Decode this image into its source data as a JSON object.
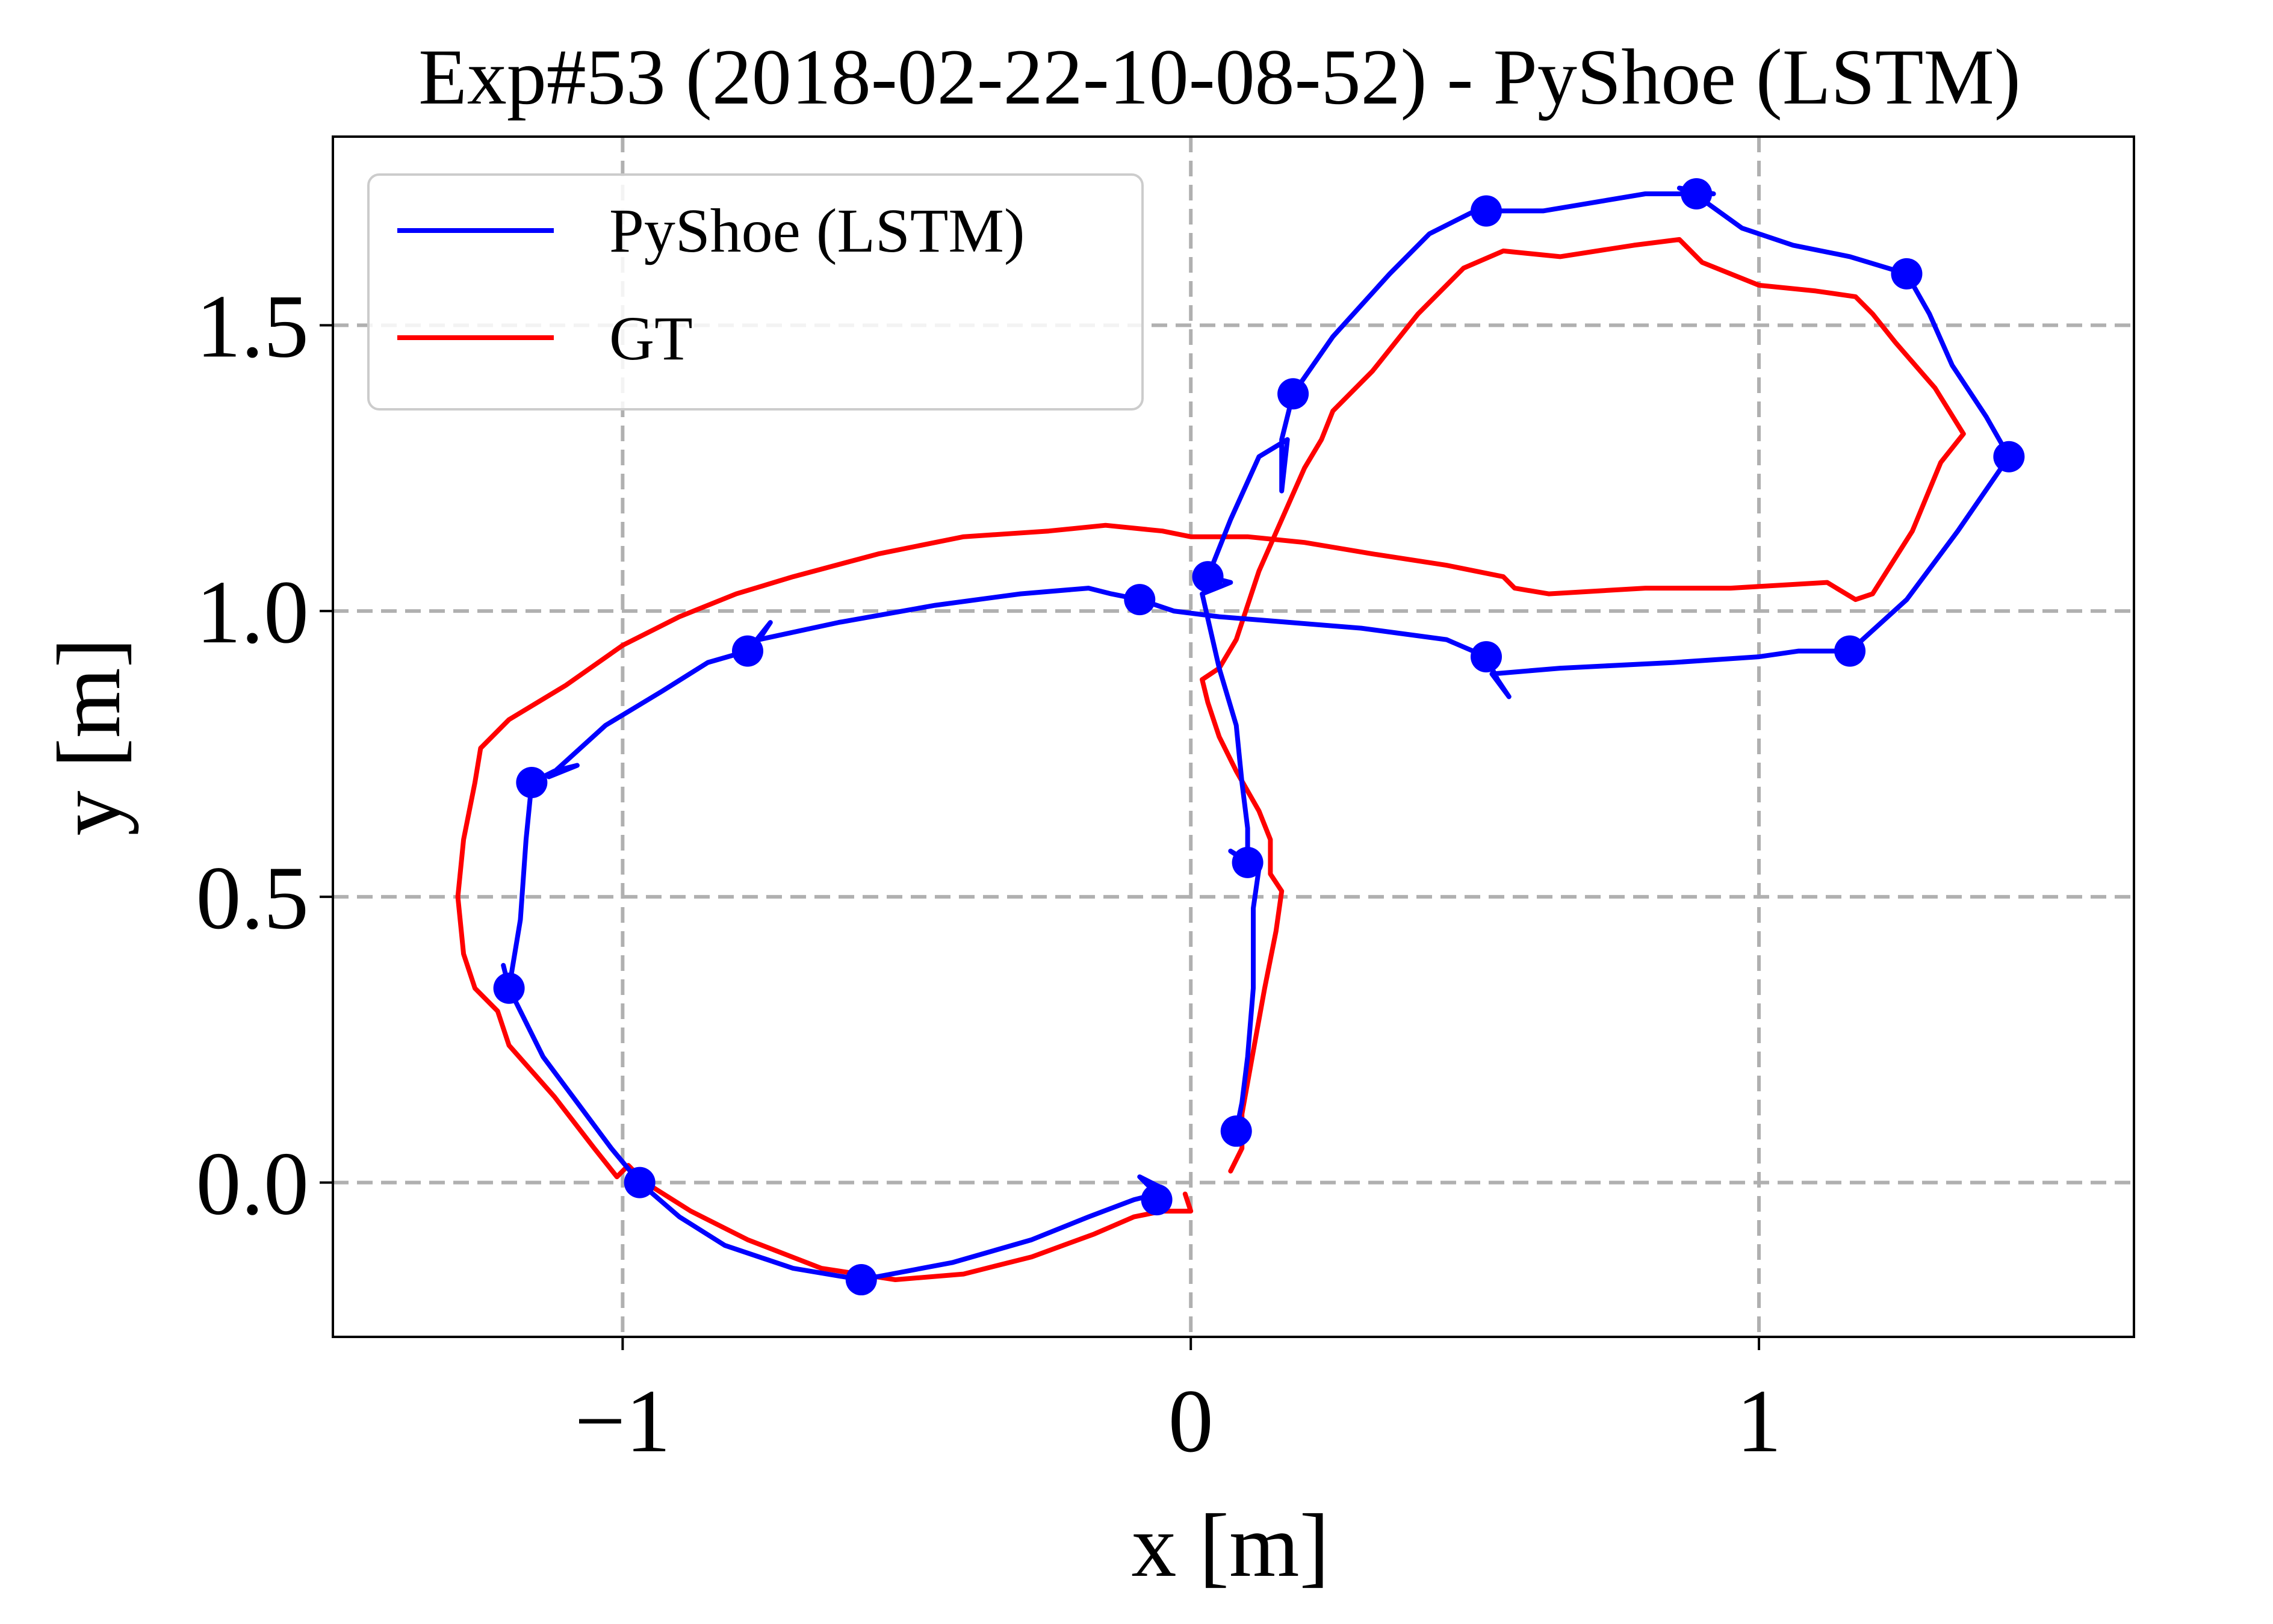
{
  "chart_data": {
    "type": "line",
    "title": "Exp#53 (2018-02-22-10-08-52) - PyShoe (LSTM)",
    "xlabel": "x [m]",
    "ylabel": "y [m]",
    "xlim": [
      -1.51,
      1.66
    ],
    "ylim": [
      -0.27,
      1.83
    ],
    "x_ticks": [
      -1,
      0,
      1
    ],
    "x_tick_labels": [
      "−1",
      "0",
      "1"
    ],
    "y_ticks": [
      0.0,
      0.5,
      1.0,
      1.5
    ],
    "y_tick_labels": [
      "0.0",
      "0.5",
      "1.0",
      "1.5"
    ],
    "grid": true,
    "grid_style": "dashed",
    "legend_position": "upper-left",
    "series": [
      {
        "name": "PyShoe (LSTM)",
        "color": "#0000ff",
        "points": [
          [
            -0.05,
            -0.01
          ],
          [
            -0.09,
            0.01
          ],
          [
            -0.06,
            -0.02
          ],
          [
            -0.1,
            -0.03
          ],
          [
            -0.18,
            -0.06
          ],
          [
            -0.28,
            -0.1
          ],
          [
            -0.42,
            -0.14
          ],
          [
            -0.58,
            -0.17
          ],
          [
            -0.7,
            -0.15
          ],
          [
            -0.82,
            -0.11
          ],
          [
            -0.9,
            -0.06
          ],
          [
            -0.97,
            0.0
          ],
          [
            -1.02,
            0.06
          ],
          [
            -1.08,
            0.14
          ],
          [
            -1.14,
            0.22
          ],
          [
            -1.18,
            0.3
          ],
          [
            -1.2,
            0.34
          ],
          [
            -1.21,
            0.38
          ],
          [
            -1.2,
            0.34
          ],
          [
            -1.18,
            0.46
          ],
          [
            -1.17,
            0.6
          ],
          [
            -1.16,
            0.7
          ],
          [
            -1.12,
            0.72
          ],
          [
            -1.08,
            0.73
          ],
          [
            -1.13,
            0.71
          ],
          [
            -1.03,
            0.8
          ],
          [
            -0.93,
            0.86
          ],
          [
            -0.85,
            0.91
          ],
          [
            -0.78,
            0.93
          ],
          [
            -0.74,
            0.98
          ],
          [
            -0.76,
            0.95
          ],
          [
            -0.62,
            0.98
          ],
          [
            -0.45,
            1.01
          ],
          [
            -0.3,
            1.03
          ],
          [
            -0.18,
            1.04
          ],
          [
            -0.14,
            1.03
          ],
          [
            -0.09,
            1.02
          ],
          [
            -0.03,
            1.0
          ],
          [
            0.05,
            0.99
          ],
          [
            0.3,
            0.97
          ],
          [
            0.45,
            0.95
          ],
          [
            0.52,
            0.92
          ],
          [
            0.54,
            0.88
          ],
          [
            0.56,
            0.85
          ],
          [
            0.53,
            0.89
          ],
          [
            0.65,
            0.9
          ],
          [
            0.85,
            0.91
          ],
          [
            1.0,
            0.92
          ],
          [
            1.07,
            0.93
          ],
          [
            1.12,
            0.93
          ],
          [
            1.16,
            0.93
          ],
          [
            1.26,
            1.02
          ],
          [
            1.35,
            1.14
          ],
          [
            1.44,
            1.27
          ],
          [
            1.4,
            1.34
          ],
          [
            1.34,
            1.43
          ],
          [
            1.3,
            1.52
          ],
          [
            1.26,
            1.59
          ],
          [
            1.16,
            1.62
          ],
          [
            1.06,
            1.64
          ],
          [
            0.97,
            1.67
          ],
          [
            0.9,
            1.72
          ],
          [
            0.86,
            1.74
          ],
          [
            0.92,
            1.73
          ],
          [
            0.8,
            1.73
          ],
          [
            0.62,
            1.7
          ],
          [
            0.52,
            1.7
          ],
          [
            0.5,
            1.7
          ],
          [
            0.42,
            1.66
          ],
          [
            0.35,
            1.59
          ],
          [
            0.25,
            1.48
          ],
          [
            0.18,
            1.38
          ],
          [
            0.16,
            1.3
          ],
          [
            0.16,
            1.21
          ],
          [
            0.17,
            1.3
          ],
          [
            0.12,
            1.27
          ],
          [
            0.07,
            1.16
          ],
          [
            0.03,
            1.06
          ],
          [
            0.07,
            1.05
          ],
          [
            0.02,
            1.03
          ],
          [
            0.05,
            0.9
          ],
          [
            0.08,
            0.8
          ],
          [
            0.09,
            0.7
          ],
          [
            0.1,
            0.62
          ],
          [
            0.1,
            0.56
          ],
          [
            0.07,
            0.58
          ],
          [
            0.12,
            0.55
          ],
          [
            0.11,
            0.48
          ],
          [
            0.11,
            0.34
          ],
          [
            0.1,
            0.22
          ],
          [
            0.09,
            0.14
          ],
          [
            0.08,
            0.09
          ]
        ]
      },
      {
        "name": "GT",
        "color": "#ff0000",
        "points": [
          [
            0.07,
            0.02
          ],
          [
            0.09,
            0.06
          ],
          [
            0.09,
            0.12
          ],
          [
            0.11,
            0.23
          ],
          [
            0.13,
            0.34
          ],
          [
            0.15,
            0.44
          ],
          [
            0.16,
            0.51
          ],
          [
            0.14,
            0.54
          ],
          [
            0.14,
            0.6
          ],
          [
            0.12,
            0.65
          ],
          [
            0.08,
            0.72
          ],
          [
            0.05,
            0.78
          ],
          [
            0.03,
            0.84
          ],
          [
            0.02,
            0.88
          ],
          [
            0.05,
            0.9
          ],
          [
            0.08,
            0.95
          ],
          [
            0.12,
            1.07
          ],
          [
            0.16,
            1.16
          ],
          [
            0.2,
            1.25
          ],
          [
            0.23,
            1.3
          ],
          [
            0.25,
            1.35
          ],
          [
            0.32,
            1.42
          ],
          [
            0.4,
            1.52
          ],
          [
            0.48,
            1.6
          ],
          [
            0.55,
            1.63
          ],
          [
            0.65,
            1.62
          ],
          [
            0.78,
            1.64
          ],
          [
            0.86,
            1.65
          ],
          [
            0.9,
            1.61
          ],
          [
            1.0,
            1.57
          ],
          [
            1.1,
            1.56
          ],
          [
            1.17,
            1.55
          ],
          [
            1.2,
            1.52
          ],
          [
            1.24,
            1.47
          ],
          [
            1.31,
            1.39
          ],
          [
            1.36,
            1.31
          ],
          [
            1.32,
            1.26
          ],
          [
            1.27,
            1.14
          ],
          [
            1.2,
            1.03
          ],
          [
            1.17,
            1.02
          ],
          [
            1.12,
            1.05
          ],
          [
            0.95,
            1.04
          ],
          [
            0.8,
            1.04
          ],
          [
            0.63,
            1.03
          ],
          [
            0.57,
            1.04
          ],
          [
            0.55,
            1.06
          ],
          [
            0.45,
            1.08
          ],
          [
            0.32,
            1.1
          ],
          [
            0.2,
            1.12
          ],
          [
            0.1,
            1.13
          ],
          [
            0.0,
            1.13
          ],
          [
            -0.05,
            1.14
          ],
          [
            -0.15,
            1.15
          ],
          [
            -0.25,
            1.14
          ],
          [
            -0.4,
            1.13
          ],
          [
            -0.55,
            1.1
          ],
          [
            -0.7,
            1.06
          ],
          [
            -0.8,
            1.03
          ],
          [
            -0.9,
            0.99
          ],
          [
            -1.0,
            0.94
          ],
          [
            -1.1,
            0.87
          ],
          [
            -1.2,
            0.81
          ],
          [
            -1.25,
            0.76
          ],
          [
            -1.26,
            0.7
          ],
          [
            -1.28,
            0.6
          ],
          [
            -1.29,
            0.5
          ],
          [
            -1.28,
            0.4
          ],
          [
            -1.26,
            0.34
          ],
          [
            -1.22,
            0.3
          ],
          [
            -1.2,
            0.24
          ],
          [
            -1.12,
            0.15
          ],
          [
            -1.05,
            0.06
          ],
          [
            -1.01,
            0.01
          ],
          [
            -0.99,
            0.03
          ],
          [
            -0.96,
            0.0
          ],
          [
            -0.88,
            -0.05
          ],
          [
            -0.78,
            -0.1
          ],
          [
            -0.65,
            -0.15
          ],
          [
            -0.52,
            -0.17
          ],
          [
            -0.4,
            -0.16
          ],
          [
            -0.28,
            -0.13
          ],
          [
            -0.17,
            -0.09
          ],
          [
            -0.1,
            -0.06
          ],
          [
            -0.05,
            -0.05
          ],
          [
            0.0,
            -0.05
          ],
          [
            -0.01,
            -0.02
          ]
        ]
      }
    ],
    "markers": {
      "series": "PyShoe (LSTM)",
      "color": "#0000ff",
      "points": [
        [
          -0.58,
          -0.17
        ],
        [
          -0.97,
          0.0
        ],
        [
          -1.2,
          0.34
        ],
        [
          -1.16,
          0.7
        ],
        [
          -0.78,
          0.93
        ],
        [
          -0.09,
          1.02
        ],
        [
          0.52,
          0.92
        ],
        [
          1.16,
          0.93
        ],
        [
          1.44,
          1.27
        ],
        [
          1.26,
          1.59
        ],
        [
          0.89,
          1.73
        ],
        [
          0.52,
          1.7
        ],
        [
          0.18,
          1.38
        ],
        [
          0.03,
          1.06
        ],
        [
          0.1,
          0.56
        ],
        [
          0.08,
          0.09
        ],
        [
          -0.06,
          -0.03
        ]
      ]
    }
  },
  "colors": {
    "grid": "#b0b0b0",
    "axes": "#000000",
    "legend_border": "#cccccc"
  }
}
